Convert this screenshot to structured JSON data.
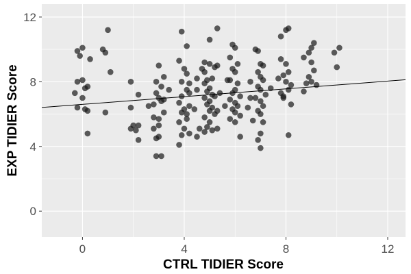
{
  "chart_data": {
    "type": "scatter",
    "xlabel": "CTRL TIDIER Score",
    "ylabel": "EXP TIDIER Score",
    "xlim": [
      -1.6,
      12.7
    ],
    "ylim": [
      -1.6,
      12.8
    ],
    "x_ticks": [
      0,
      4,
      8,
      12
    ],
    "y_ticks": [
      0,
      4,
      8,
      12
    ],
    "x_tick_labels": [
      "0",
      "4",
      "8",
      "12"
    ],
    "y_tick_labels": [
      "0",
      "4",
      "8",
      "12"
    ],
    "grid": true,
    "panel_background": "#ebebeb",
    "grid_color": "#ffffff",
    "point_color": "#1a1a1a",
    "point_alpha": 0.7,
    "trend_line": {
      "intercept": 6.6,
      "slope": 0.12,
      "color": "#000000"
    },
    "points": [
      [
        -0.2,
        9.9
      ],
      [
        0.0,
        10.1
      ],
      [
        -0.1,
        9.6
      ],
      [
        0.3,
        9.4
      ],
      [
        -0.2,
        8.0
      ],
      [
        0.0,
        8.1
      ],
      [
        0.2,
        7.7
      ],
      [
        0.1,
        7.6
      ],
      [
        -0.3,
        7.3
      ],
      [
        0.0,
        7.0
      ],
      [
        -0.2,
        6.4
      ],
      [
        0.1,
        6.3
      ],
      [
        0.2,
        6.2
      ],
      [
        0.2,
        4.8
      ],
      [
        0.8,
        10.0
      ],
      [
        0.9,
        9.8
      ],
      [
        1.0,
        11.2
      ],
      [
        1.1,
        8.6
      ],
      [
        0.9,
        6.1
      ],
      [
        1.9,
        8.0
      ],
      [
        1.9,
        6.4
      ],
      [
        2.0,
        5.3
      ],
      [
        1.9,
        5.1
      ],
      [
        2.1,
        5.0
      ],
      [
        2.2,
        5.3
      ],
      [
        2.2,
        4.4
      ],
      [
        2.2,
        7.2
      ],
      [
        2.6,
        6.5
      ],
      [
        2.8,
        5.1
      ],
      [
        2.9,
        4.5
      ],
      [
        3.0,
        4.6
      ],
      [
        2.9,
        3.4
      ],
      [
        3.1,
        3.4
      ],
      [
        2.9,
        7.3
      ],
      [
        3.0,
        7.0
      ],
      [
        3.1,
        6.8
      ],
      [
        3.2,
        6.9
      ],
      [
        3.2,
        6.1
      ],
      [
        2.8,
        6.6
      ],
      [
        3.0,
        5.7
      ],
      [
        3.0,
        5.3
      ],
      [
        2.8,
        5.8
      ],
      [
        3.0,
        9.0
      ],
      [
        3.2,
        8.3
      ],
      [
        3.1,
        7.7
      ],
      [
        2.9,
        8.0
      ],
      [
        3.4,
        7.5
      ],
      [
        3.9,
        11.1
      ],
      [
        4.1,
        10.2
      ],
      [
        3.8,
        9.3
      ],
      [
        4.0,
        8.8
      ],
      [
        4.1,
        8.5
      ],
      [
        3.9,
        8.0
      ],
      [
        4.2,
        7.9
      ],
      [
        4.1,
        7.5
      ],
      [
        3.9,
        7.1
      ],
      [
        4.2,
        7.3
      ],
      [
        3.8,
        6.7
      ],
      [
        4.0,
        6.3
      ],
      [
        3.9,
        6.1
      ],
      [
        4.1,
        6.0
      ],
      [
        4.2,
        6.5
      ],
      [
        3.8,
        5.5
      ],
      [
        4.1,
        5.7
      ],
      [
        4.0,
        5.1
      ],
      [
        3.9,
        4.7
      ],
      [
        4.2,
        4.8
      ],
      [
        3.8,
        4.1
      ],
      [
        4.5,
        8.2
      ],
      [
        4.5,
        7.5
      ],
      [
        4.4,
        6.3
      ],
      [
        4.6,
        5.1
      ],
      [
        4.5,
        4.6
      ],
      [
        4.7,
        8.8
      ],
      [
        4.8,
        9.2
      ],
      [
        5.0,
        9.1
      ],
      [
        4.8,
        8.6
      ],
      [
        4.9,
        8.1
      ],
      [
        5.1,
        8.2
      ],
      [
        5.2,
        8.9
      ],
      [
        4.8,
        7.9
      ],
      [
        5.0,
        7.6
      ],
      [
        4.9,
        7.4
      ],
      [
        5.1,
        7.2
      ],
      [
        5.2,
        7.1
      ],
      [
        4.8,
        7.0
      ],
      [
        5.0,
        6.8
      ],
      [
        4.9,
        6.6
      ],
      [
        5.1,
        6.4
      ],
      [
        5.0,
        6.2
      ],
      [
        5.2,
        6.0
      ],
      [
        4.8,
        5.8
      ],
      [
        5.0,
        5.5
      ],
      [
        4.9,
        5.2
      ],
      [
        5.1,
        5.0
      ],
      [
        4.8,
        4.9
      ],
      [
        5.0,
        10.6
      ],
      [
        5.3,
        11.3
      ],
      [
        5.3,
        9.0
      ],
      [
        5.4,
        7.3
      ],
      [
        5.3,
        6.2
      ],
      [
        5.3,
        5.1
      ],
      [
        5.6,
        6.5
      ],
      [
        5.7,
        8.1
      ],
      [
        5.9,
        10.3
      ],
      [
        6.0,
        10.1
      ],
      [
        5.8,
        9.5
      ],
      [
        6.1,
        9.1
      ],
      [
        5.9,
        8.8
      ],
      [
        6.0,
        8.6
      ],
      [
        5.8,
        8.1
      ],
      [
        6.1,
        7.9
      ],
      [
        6.0,
        7.5
      ],
      [
        5.9,
        7.3
      ],
      [
        6.2,
        7.1
      ],
      [
        5.8,
        6.9
      ],
      [
        6.0,
        6.7
      ],
      [
        6.1,
        6.5
      ],
      [
        5.9,
        6.3
      ],
      [
        6.0,
        6.1
      ],
      [
        6.2,
        5.9
      ],
      [
        5.8,
        5.7
      ],
      [
        6.0,
        5.5
      ],
      [
        6.2,
        4.6
      ],
      [
        6.6,
        8.0
      ],
      [
        6.6,
        7.0
      ],
      [
        6.5,
        6.4
      ],
      [
        6.7,
        5.6
      ],
      [
        6.8,
        10.0
      ],
      [
        6.9,
        9.9
      ],
      [
        7.0,
        9.1
      ],
      [
        7.1,
        9.0
      ],
      [
        6.9,
        8.6
      ],
      [
        7.0,
        8.3
      ],
      [
        7.1,
        8.1
      ],
      [
        6.9,
        7.7
      ],
      [
        7.0,
        7.5
      ],
      [
        7.2,
        7.2
      ],
      [
        6.8,
        7.0
      ],
      [
        7.0,
        6.8
      ],
      [
        7.1,
        6.5
      ],
      [
        6.9,
        6.2
      ],
      [
        7.0,
        6.0
      ],
      [
        7.1,
        5.5
      ],
      [
        7.0,
        4.8
      ],
      [
        6.9,
        4.4
      ],
      [
        7.0,
        3.9
      ],
      [
        7.4,
        7.6
      ],
      [
        7.7,
        8.2
      ],
      [
        7.8,
        7.3
      ],
      [
        7.9,
        7.0
      ],
      [
        8.1,
        11.3
      ],
      [
        8.0,
        11.2
      ],
      [
        7.8,
        10.8
      ],
      [
        7.8,
        9.4
      ],
      [
        8.0,
        9.1
      ],
      [
        8.1,
        8.6
      ],
      [
        7.9,
        8.4
      ],
      [
        8.0,
        8.0
      ],
      [
        8.2,
        7.8
      ],
      [
        8.1,
        7.5
      ],
      [
        7.9,
        7.1
      ],
      [
        8.2,
        6.6
      ],
      [
        8.1,
        4.7
      ],
      [
        8.7,
        9.5
      ],
      [
        8.7,
        7.4
      ],
      [
        8.8,
        7.9
      ],
      [
        9.0,
        10.1
      ],
      [
        9.1,
        10.4
      ],
      [
        8.9,
        9.8
      ],
      [
        9.0,
        9.2
      ],
      [
        9.1,
        8.7
      ],
      [
        8.9,
        8.3
      ],
      [
        9.0,
        8.0
      ],
      [
        9.2,
        7.8
      ],
      [
        9.9,
        9.8
      ],
      [
        10.1,
        10.1
      ],
      [
        10.0,
        8.9
      ]
    ]
  }
}
